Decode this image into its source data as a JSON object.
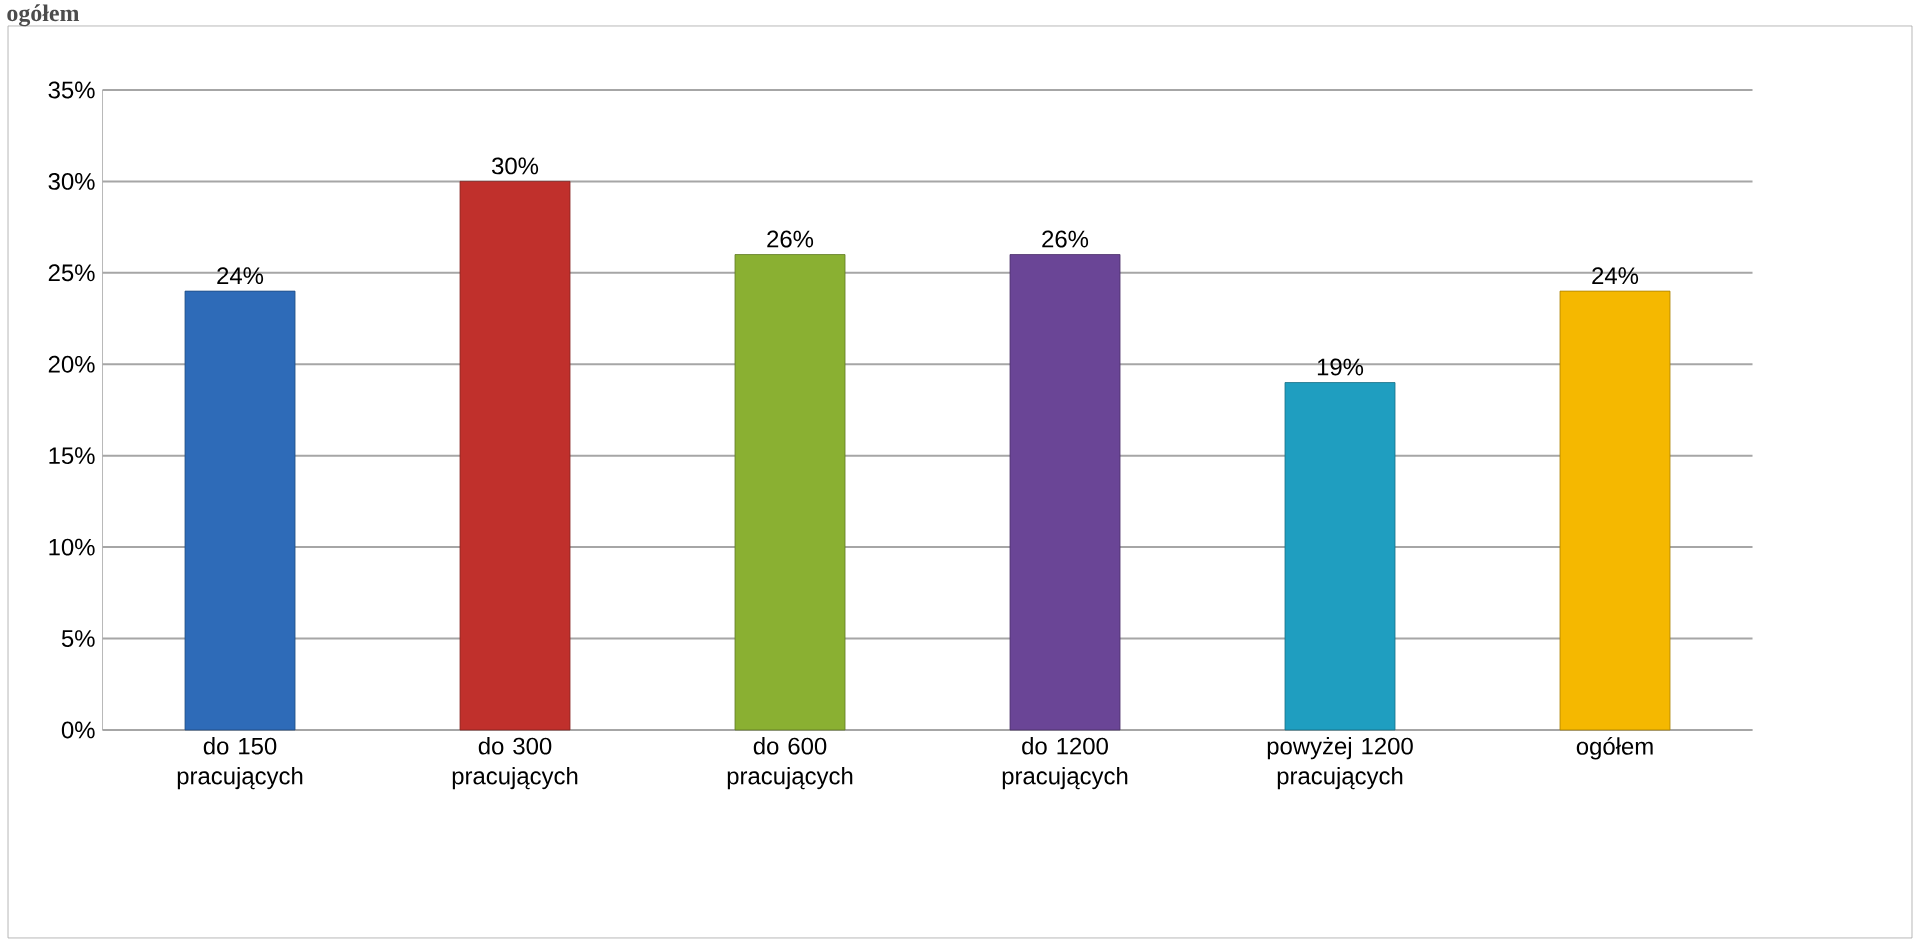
{
  "chart_data": {
    "type": "bar",
    "title": "ogółem",
    "categories": [
      "do 150 pracujących",
      "do 300 pracujących",
      "do 600 pracujących",
      "do 1200 pracujących",
      "powyżej 1200 pracujących",
      "ogółem"
    ],
    "values": [
      24,
      30,
      26,
      26,
      19,
      24
    ],
    "colors": [
      "#2e6bb8",
      "#c0302c",
      "#8ab032",
      "#6a4596",
      "#1f9ec0",
      "#f5b800"
    ],
    "value_labels": [
      "24%",
      "30%",
      "26%",
      "26%",
      "19%",
      "24%"
    ],
    "ylim": [
      0,
      35
    ],
    "yticks": [
      {
        "value": 0,
        "label": "0%"
      },
      {
        "value": 5,
        "label": "5%"
      },
      {
        "value": 10,
        "label": "10%"
      },
      {
        "value": 15,
        "label": "15%"
      },
      {
        "value": 20,
        "label": "20%"
      },
      {
        "value": 25,
        "label": "25%"
      },
      {
        "value": 30,
        "label": "30%"
      },
      {
        "value": 35,
        "label": "35%"
      }
    ],
    "grid": "y"
  }
}
